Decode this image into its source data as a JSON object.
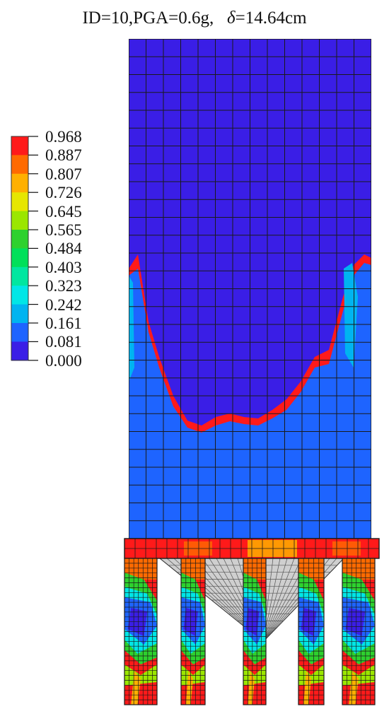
{
  "title": {
    "prefix": "ID=10,PGA=0.6g,",
    "delta_symbol": "δ",
    "delta_value": "=14.64cm"
  },
  "legend": {
    "values": [
      "0.968",
      "0.887",
      "0.807",
      "0.726",
      "0.645",
      "0.565",
      "0.484",
      "0.403",
      "0.323",
      "0.242",
      "0.161",
      "0.081",
      "0.000"
    ],
    "colors": [
      "#ff1a1a",
      "#ff6a00",
      "#ffb000",
      "#e6e600",
      "#9be600",
      "#2ed12e",
      "#00e05a",
      "#00e6a0",
      "#00e6e6",
      "#00b4f0",
      "#1e64ff",
      "#3a1ee6"
    ]
  },
  "contour_colors": {
    "deep_blue": "#3a1ee6",
    "blue": "#1e64ff",
    "light_blue": "#00b4f0",
    "cyan": "#00e6e6",
    "aqua": "#00e6a0",
    "green": "#2ed12e",
    "yellow_green": "#9be600",
    "yellow": "#e6e600",
    "orange": "#ffb000",
    "orange_red": "#ff6a00",
    "red": "#ff1a1a",
    "hopper_grey": "#cfcfcf",
    "mesh": "#1a1a1a"
  }
}
